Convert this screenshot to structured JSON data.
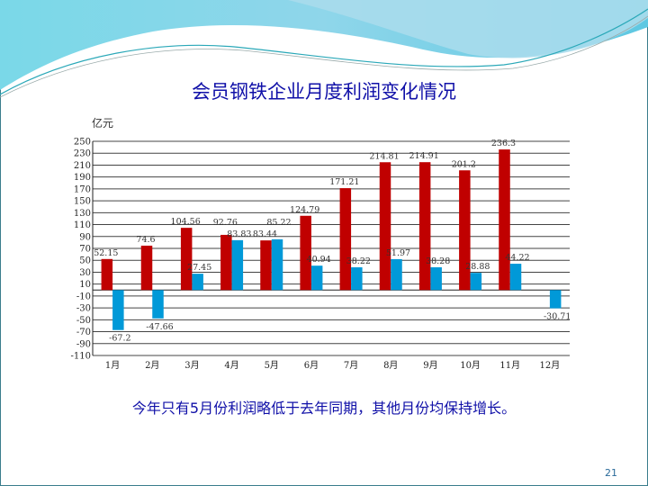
{
  "slide": {
    "title": "会员钢铁企业月度利润变化情况",
    "note": "今年只有5月份利润略低于去年同期，其他月份均保持增长。",
    "page_number": "21"
  },
  "chart_data": {
    "type": "bar",
    "title": "会员钢铁企业月度利润变化情况",
    "ylabel": "亿元",
    "xlabel": "",
    "ylim": [
      -110,
      250
    ],
    "yticks": [
      250,
      230,
      210,
      190,
      170,
      150,
      130,
      110,
      90,
      70,
      50,
      30,
      10,
      -10,
      -30,
      -50,
      -70,
      -90,
      -110
    ],
    "grid": true,
    "legend": "none",
    "categories": [
      "1月",
      "2月",
      "3月",
      "4月",
      "5月",
      "6月",
      "7月",
      "8月",
      "9月",
      "10月",
      "11月",
      "12月"
    ],
    "series": [
      {
        "color": "#c00000",
        "values": [
          52.15,
          74.6,
          104.56,
          92.76,
          83.44,
          124.79,
          171.21,
          214.81,
          214.91,
          201.2,
          236.3,
          null
        ]
      },
      {
        "color": "#0099d8",
        "values": [
          -67.2,
          -47.66,
          27.45,
          83.83,
          85.22,
          40.94,
          38.22,
          51.97,
          38.28,
          28.88,
          44.22,
          -30.71
        ]
      }
    ]
  },
  "colors": {
    "title": "#1010a8",
    "frame": "#3a7d8c",
    "swoosh": "#5ccbe0"
  }
}
